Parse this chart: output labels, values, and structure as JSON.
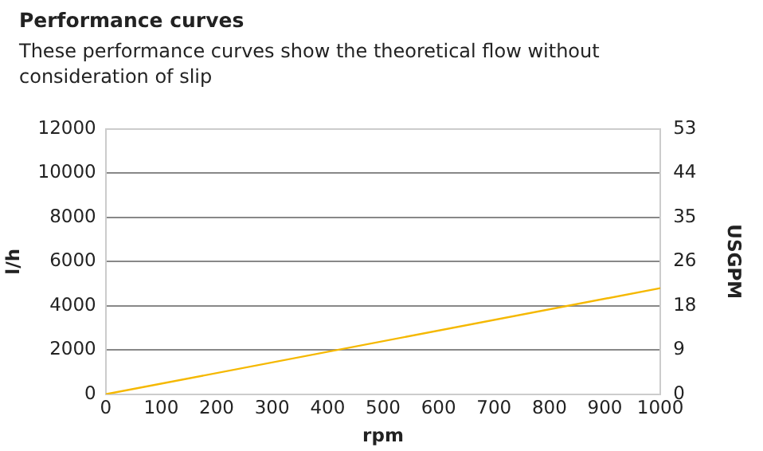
{
  "chart_data": {
    "type": "line",
    "title": "Performance curves",
    "subtitle": "These performance curves show the theoretical flow without consideration of slip",
    "xlabel": "rpm",
    "ylabel": "l/h",
    "y2label": "USGPM",
    "x": [
      0,
      1000
    ],
    "series": [
      {
        "color": "#f5b800",
        "values": [
          0,
          4800
        ]
      }
    ],
    "xlim": [
      0,
      1000
    ],
    "xticks": [
      0,
      100,
      200,
      300,
      400,
      500,
      600,
      700,
      800,
      900,
      1000
    ],
    "ylim": [
      0,
      12000
    ],
    "yticks": [
      0,
      2000,
      4000,
      6000,
      8000,
      10000,
      12000
    ],
    "y2lim": [
      0,
      52.83
    ],
    "y2ticks": [
      0,
      {
        "value": 8.81,
        "label": "9"
      },
      {
        "value": 17.61,
        "label": "18"
      },
      {
        "value": 26.42,
        "label": "26"
      },
      {
        "value": 35.22,
        "label": "35"
      },
      {
        "value": 44.03,
        "label": "44"
      },
      {
        "value": 52.83,
        "label": "53"
      }
    ],
    "grid": "y",
    "legend": false,
    "marker": "none",
    "line_style": "solid"
  }
}
